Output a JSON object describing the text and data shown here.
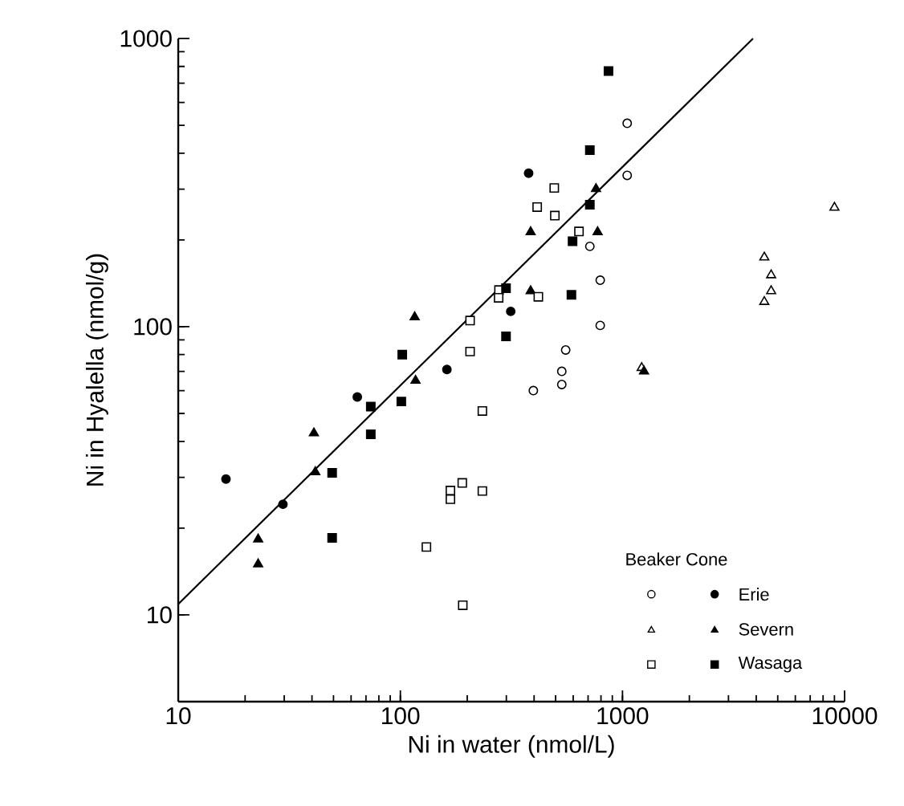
{
  "chart_data": {
    "type": "scatter",
    "xlabel": "Ni in water (nmol/L)",
    "ylabel": "Ni in Hyalella (nmol/g)",
    "legend_title": "Beaker Cone",
    "legend": "bottom right",
    "log": "xy",
    "xlim": [
      10,
      10000
    ],
    "ylim": [
      5,
      1000
    ],
    "xticks": [
      10,
      100,
      1000,
      10000
    ],
    "yticks": [
      10,
      100,
      1000
    ],
    "series": [
      {
        "color": "#ffffff",
        "marker": "circle",
        "x": [
          1050,
          1050,
          713,
          794,
          794,
          555,
          397,
          533,
          533
        ],
        "values": [
          508,
          335,
          190,
          145,
          101,
          83,
          60,
          70,
          63
        ]
      },
      {
        "name": "Erie",
        "color": "#000000",
        "marker": "circle",
        "x": [
          378,
          314,
          162,
          16.4,
          29.6,
          64
        ],
        "values": [
          341,
          113,
          71,
          29.6,
          24.2,
          57
        ]
      },
      {
        "color": "#ffffff",
        "marker": "triangle",
        "x": [
          1220,
          9000,
          4350,
          4670,
          4670,
          4350
        ],
        "values": [
          72,
          259,
          174,
          151,
          133,
          122
        ]
      },
      {
        "name": "Severn",
        "color": "#000000",
        "marker": "triangle",
        "x": [
          760,
          386,
          773,
          386,
          116,
          117,
          1250,
          22.9,
          22.9,
          40.8,
          41.4
        ],
        "values": [
          301,
          213,
          213,
          133,
          108,
          65,
          70,
          18.3,
          15.0,
          42.7,
          31.3
        ]
      },
      {
        "color": "#ffffff",
        "marker": "square",
        "x": [
          493,
          413,
          496,
          637,
          278,
          277,
          418,
          206,
          206,
          234,
          190,
          168,
          168,
          234,
          131,
          191
        ],
        "values": [
          303,
          260,
          243,
          214,
          134,
          126,
          127,
          105,
          82,
          51,
          28.7,
          27,
          25.2,
          26.9,
          17.2,
          10.8
        ]
      },
      {
        "name": "Wasaga",
        "color": "#000000",
        "marker": "square",
        "x": [
          865,
          713,
          713,
          596,
          299,
          589,
          299,
          102,
          101,
          49.3,
          49.3,
          73.6,
          73.6
        ],
        "values": [
          771,
          410,
          265,
          198,
          136,
          129,
          92.5,
          80,
          55,
          31.1,
          18.5,
          52.8,
          42.3
        ]
      },
      {
        "type": "line",
        "color": "#000000",
        "x": [
          10,
          3870
        ],
        "values": [
          10.9,
          1000
        ]
      }
    ]
  }
}
